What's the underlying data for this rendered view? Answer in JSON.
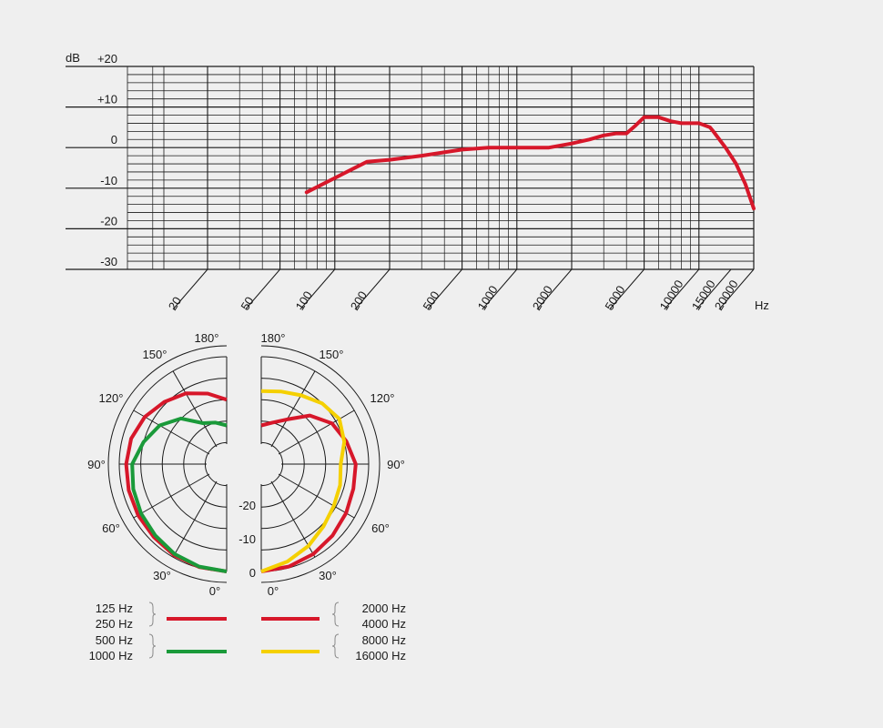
{
  "chart_data": [
    {
      "type": "line",
      "title": "",
      "xlabel": "Hz",
      "ylabel": "dB",
      "x_scale": "log",
      "xlim": [
        20,
        20000
      ],
      "ylim": [
        -30,
        20
      ],
      "x_ticks": [
        "20",
        "50",
        "100",
        "200",
        "500",
        "1000",
        "2000",
        "5000",
        "10000",
        "15000",
        "20000"
      ],
      "y_ticks": [
        "+20",
        "+10",
        "0",
        "-10",
        "-20",
        "-30"
      ],
      "grid": true,
      "series": [
        {
          "color": "#d7172a",
          "x": [
            70,
            100,
            150,
            200,
            300,
            500,
            700,
            1000,
            1500,
            2000,
            2500,
            3000,
            3500,
            4000,
            4500,
            5000,
            6000,
            7000,
            8000,
            10000,
            11500,
            12000,
            14000,
            16000,
            18000,
            20000
          ],
          "y": [
            -11,
            -7.5,
            -3.5,
            -3,
            -2,
            -0.5,
            0,
            0,
            0,
            1,
            2,
            3,
            3.5,
            3.5,
            5.5,
            7.5,
            7.5,
            6.5,
            6,
            6,
            5,
            4,
            0,
            -4,
            -9,
            -15
          ]
        }
      ]
    },
    {
      "type": "polar",
      "angle_labels": [
        "180°",
        "150°",
        "120°",
        "90°",
        "60°",
        "30°",
        "0°"
      ],
      "r_labels": [
        "-20",
        "-10",
        "0"
      ],
      "rlim": [
        -25,
        0
      ],
      "left_half": [
        {
          "group": "125 Hz / 250 Hz",
          "color": "#d7172a",
          "angles": [
            0,
            15,
            30,
            45,
            60,
            75,
            90,
            105,
            120,
            135,
            150,
            165,
            180
          ],
          "values": [
            0,
            -0.2,
            -0.5,
            -1,
            -1.2,
            -1.4,
            -1.6,
            -2,
            -3,
            -4.5,
            -6,
            -8,
            -10
          ]
        },
        {
          "group": "500 Hz / 1000 Hz",
          "color": "#1a9a3a",
          "angles": [
            0,
            15,
            30,
            45,
            60,
            75,
            90,
            105,
            120,
            135,
            150,
            165,
            180
          ],
          "values": [
            0,
            -0.3,
            -0.8,
            -1.5,
            -2,
            -2.5,
            -3,
            -5,
            -7,
            -10,
            -14,
            -15,
            -16
          ]
        }
      ],
      "right_half": [
        {
          "group": "2000 Hz / 4000 Hz",
          "color": "#d7172a",
          "angles": [
            0,
            15,
            30,
            45,
            60,
            75,
            90,
            105,
            120,
            135,
            150,
            165,
            180
          ],
          "values": [
            0,
            -0.3,
            -0.8,
            -1.5,
            -2.2,
            -2.8,
            -3,
            -4.5,
            -6,
            -9,
            -13,
            -15,
            -16
          ]
        },
        {
          "group": "8000 Hz / 16000 Hz",
          "color": "#f5d000",
          "angles": [
            0,
            15,
            30,
            45,
            60,
            75,
            90,
            105,
            120,
            135,
            150,
            165,
            180
          ],
          "values": [
            0,
            -1.5,
            -3,
            -4.5,
            -5.5,
            -6,
            -6.5,
            -5,
            -4,
            -5,
            -6.5,
            -7.5,
            -8
          ]
        }
      ],
      "legend": [
        {
          "labels": [
            "125 Hz",
            "250 Hz"
          ],
          "color": "#d7172a",
          "side": "left"
        },
        {
          "labels": [
            "500 Hz",
            "1000 Hz"
          ],
          "color": "#1a9a3a",
          "side": "left"
        },
        {
          "labels": [
            "2000 Hz",
            "4000 Hz"
          ],
          "color": "#d7172a",
          "side": "right"
        },
        {
          "labels": [
            "8000 Hz",
            "16000 Hz"
          ],
          "color": "#f5d000",
          "side": "right"
        }
      ]
    }
  ]
}
